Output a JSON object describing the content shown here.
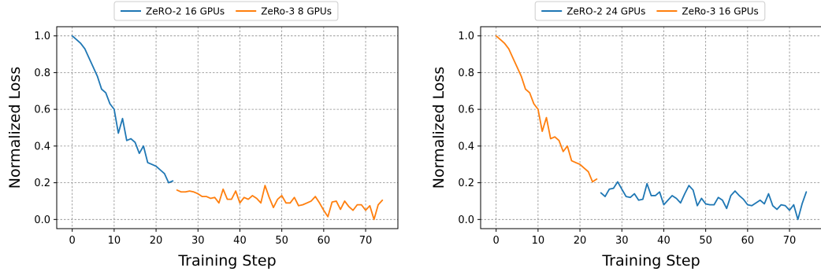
{
  "chart_data": [
    {
      "type": "line",
      "xlabel": "Training Step",
      "ylabel": "Normalized Loss",
      "xlim": [
        -3.7,
        77.7
      ],
      "ylim": [
        -0.05,
        1.05
      ],
      "xticks": [
        0,
        10,
        20,
        30,
        40,
        50,
        60,
        70
      ],
      "yticks": [
        0.0,
        0.2,
        0.4,
        0.6,
        0.8,
        1.0
      ],
      "grid": true,
      "legend_position": "top-center-outside",
      "series": [
        {
          "name": "ZeRO-2 16 GPUs",
          "color": "#1f77b4",
          "x": [
            0,
            1,
            2,
            3,
            4,
            5,
            6,
            7,
            8,
            9,
            10,
            11,
            12,
            13,
            14,
            15,
            16,
            17,
            18,
            19,
            20,
            21,
            22,
            23,
            24
          ],
          "y": [
            1.0,
            0.98,
            0.96,
            0.93,
            0.88,
            0.83,
            0.78,
            0.71,
            0.69,
            0.63,
            0.6,
            0.47,
            0.55,
            0.43,
            0.44,
            0.42,
            0.36,
            0.4,
            0.31,
            0.3,
            0.29,
            0.27,
            0.25,
            0.2,
            0.21
          ]
        },
        {
          "name": "ZeRo-3 8 GPUs",
          "color": "#ff7f0e",
          "x": [
            25,
            26,
            27,
            28,
            29,
            30,
            31,
            32,
            33,
            34,
            35,
            36,
            37,
            38,
            39,
            40,
            41,
            42,
            43,
            44,
            45,
            46,
            47,
            48,
            49,
            50,
            51,
            52,
            53,
            54,
            55,
            56,
            57,
            58,
            59,
            60,
            61,
            62,
            63,
            64,
            65,
            66,
            67,
            68,
            69,
            70,
            71,
            72,
            73,
            74
          ],
          "y": [
            0.16,
            0.15,
            0.15,
            0.155,
            0.15,
            0.14,
            0.125,
            0.125,
            0.115,
            0.12,
            0.09,
            0.165,
            0.11,
            0.11,
            0.155,
            0.09,
            0.12,
            0.11,
            0.13,
            0.115,
            0.09,
            0.185,
            0.12,
            0.065,
            0.11,
            0.13,
            0.09,
            0.09,
            0.12,
            0.075,
            0.08,
            0.09,
            0.1,
            0.125,
            0.09,
            0.05,
            0.015,
            0.095,
            0.1,
            0.055,
            0.1,
            0.07,
            0.05,
            0.08,
            0.08,
            0.05,
            0.075,
            0.0,
            0.08,
            0.105
          ]
        }
      ]
    },
    {
      "type": "line",
      "xlabel": "Training Step",
      "ylabel": "Normalized Loss",
      "xlim": [
        -3.7,
        77.7
      ],
      "ylim": [
        -0.05,
        1.05
      ],
      "xticks": [
        0,
        10,
        20,
        30,
        40,
        50,
        60,
        70
      ],
      "yticks": [
        0.0,
        0.2,
        0.4,
        0.6,
        0.8,
        1.0
      ],
      "grid": true,
      "legend_position": "top-center-outside",
      "series": [
        {
          "name": "ZeRO-2 24 GPUs",
          "color": "#1f77b4",
          "x": [
            25,
            26,
            27,
            28,
            29,
            30,
            31,
            32,
            33,
            34,
            35,
            36,
            37,
            38,
            39,
            40,
            41,
            42,
            43,
            44,
            45,
            46,
            47,
            48,
            49,
            50,
            51,
            52,
            53,
            54,
            55,
            56,
            57,
            58,
            59,
            60,
            61,
            62,
            63,
            64,
            65,
            66,
            67,
            68,
            69,
            70,
            71,
            72,
            73,
            74
          ],
          "y": [
            0.145,
            0.125,
            0.165,
            0.17,
            0.205,
            0.165,
            0.125,
            0.12,
            0.14,
            0.105,
            0.11,
            0.195,
            0.13,
            0.13,
            0.15,
            0.08,
            0.105,
            0.13,
            0.115,
            0.09,
            0.14,
            0.185,
            0.16,
            0.075,
            0.115,
            0.085,
            0.08,
            0.08,
            0.12,
            0.105,
            0.06,
            0.13,
            0.155,
            0.13,
            0.11,
            0.08,
            0.075,
            0.09,
            0.105,
            0.085,
            0.14,
            0.075,
            0.055,
            0.08,
            0.075,
            0.05,
            0.08,
            0.0,
            0.085,
            0.15
          ]
        },
        {
          "name": "ZeRo-3 16 GPUs",
          "color": "#ff7f0e",
          "x": [
            0,
            1,
            2,
            3,
            4,
            5,
            6,
            7,
            8,
            9,
            10,
            11,
            12,
            13,
            14,
            15,
            16,
            17,
            18,
            19,
            20,
            21,
            22,
            23,
            24
          ],
          "y": [
            1.0,
            0.98,
            0.96,
            0.93,
            0.88,
            0.83,
            0.78,
            0.71,
            0.69,
            0.63,
            0.6,
            0.48,
            0.555,
            0.44,
            0.45,
            0.43,
            0.37,
            0.4,
            0.32,
            0.31,
            0.3,
            0.28,
            0.26,
            0.205,
            0.22
          ]
        }
      ]
    }
  ]
}
